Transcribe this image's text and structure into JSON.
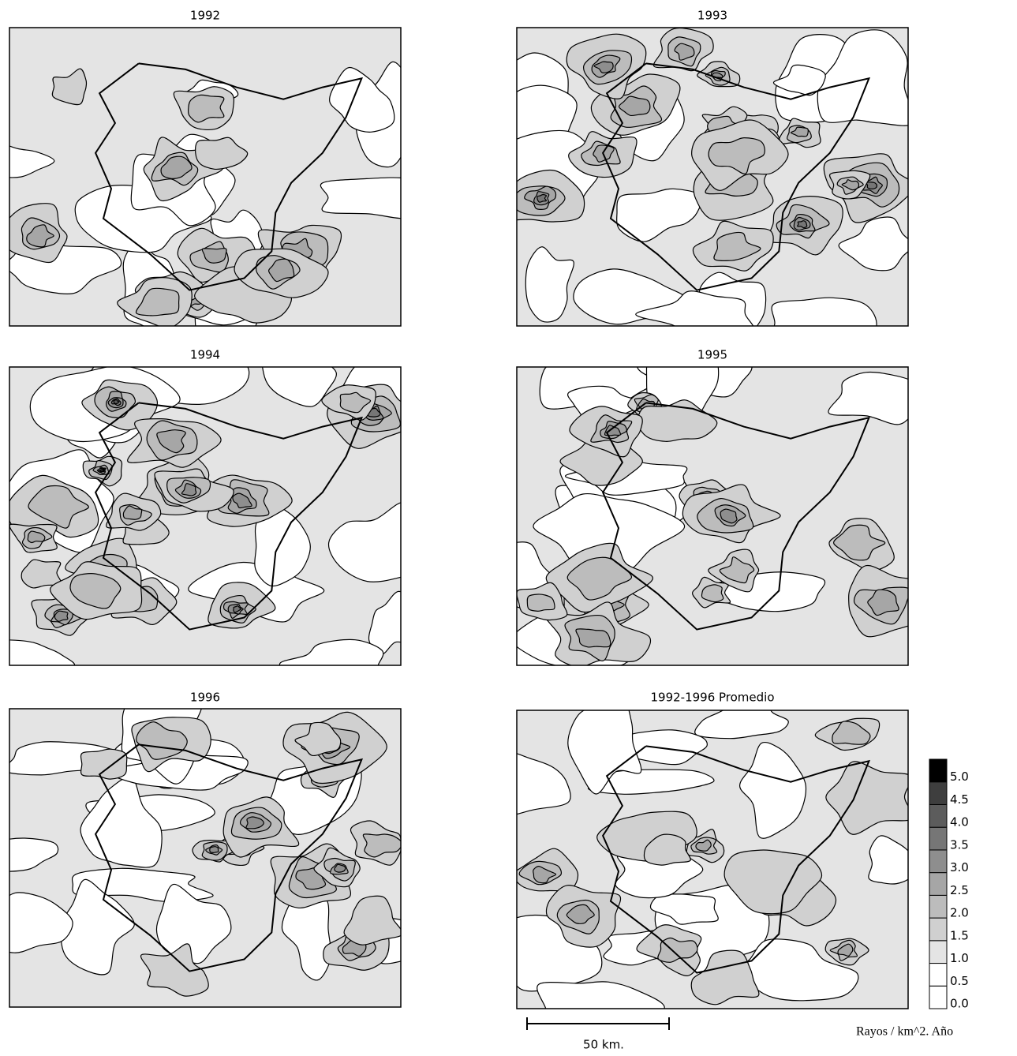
{
  "maps": [
    {
      "title": "1992"
    },
    {
      "title": "1993"
    },
    {
      "title": "1994"
    },
    {
      "title": "1995"
    },
    {
      "title": "1996"
    },
    {
      "title": "1992-1996 Promedio"
    }
  ],
  "legend": {
    "title": "Rayos / km^2. Año",
    "levels": [
      {
        "value": 0,
        "label": "0.0"
      },
      {
        "value": 0.5,
        "label": "0.5"
      },
      {
        "value": 1,
        "label": "1.0"
      },
      {
        "value": 1.5,
        "label": "1.5"
      },
      {
        "value": 2,
        "label": "2.0"
      },
      {
        "value": 2.5,
        "label": "2.5"
      },
      {
        "value": 3,
        "label": "3.0"
      },
      {
        "value": 3.5,
        "label": "3.5"
      },
      {
        "value": 4,
        "label": "4.0"
      },
      {
        "value": 4.5,
        "label": "4.5"
      },
      {
        "value": 5,
        "label": "5.0"
      }
    ],
    "colors": [
      "#ffffff",
      "#ffffff",
      "#e4e4e4",
      "#d0d0d0",
      "#bcbcbc",
      "#a6a6a6",
      "#8e8e8e",
      "#767676",
      "#5c5c5c",
      "#3e3e3e",
      "#000000"
    ]
  },
  "scale_bar": {
    "label": "50 km."
  }
}
